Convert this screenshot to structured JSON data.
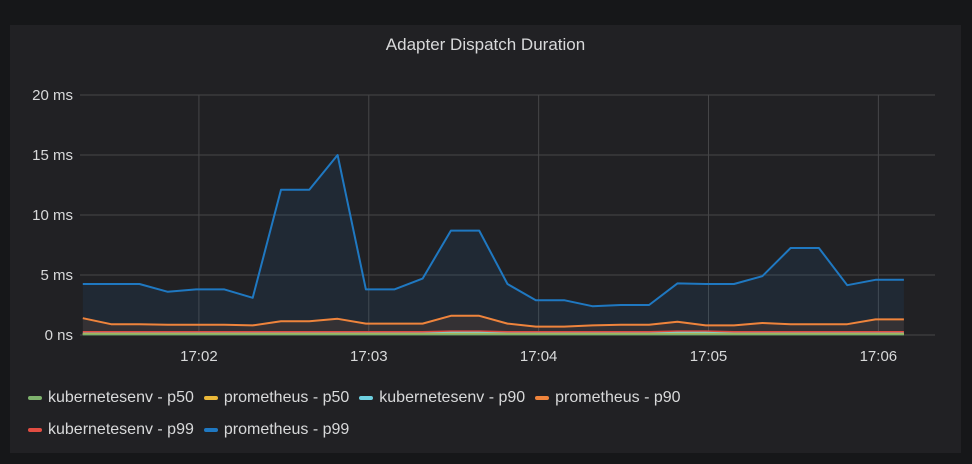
{
  "chart_data": {
    "type": "line",
    "title": "Adapter Dispatch Duration",
    "xlabel": "",
    "ylabel": "",
    "ylim": [
      0,
      20
    ],
    "y_ticks": [
      "0 ns",
      "5 ms",
      "10 ms",
      "15 ms",
      "20 ms"
    ],
    "y_tick_values": [
      0,
      5,
      10,
      15,
      20
    ],
    "xlim": [
      "17:01:18",
      "17:06:20"
    ],
    "x_ticks": [
      "17:02",
      "17:03",
      "17:04",
      "17:05",
      "17:06"
    ],
    "grid": true,
    "legend_position": "bottom",
    "x": [
      "17:01:19",
      "17:01:29",
      "17:01:39",
      "17:01:49",
      "17:01:59",
      "17:02:09",
      "17:02:19",
      "17:02:29",
      "17:02:39",
      "17:02:49",
      "17:02:59",
      "17:03:09",
      "17:03:19",
      "17:03:29",
      "17:03:39",
      "17:03:49",
      "17:03:59",
      "17:04:09",
      "17:04:19",
      "17:04:29",
      "17:04:39",
      "17:04:49",
      "17:04:59",
      "17:05:09",
      "17:05:19",
      "17:05:29",
      "17:05:39",
      "17:05:49",
      "17:05:59",
      "17:06:09"
    ],
    "series": [
      {
        "name": "kubernetesenv - p50",
        "color": "#7EB26D",
        "values": [
          0.05,
          0.05,
          0.05,
          0.05,
          0.05,
          0.05,
          0.05,
          0.05,
          0.05,
          0.05,
          0.05,
          0.05,
          0.05,
          0.05,
          0.05,
          0.05,
          0.05,
          0.05,
          0.05,
          0.05,
          0.05,
          0.05,
          0.05,
          0.05,
          0.05,
          0.05,
          0.05,
          0.05,
          0.05,
          0.05
        ]
      },
      {
        "name": "prometheus - p50",
        "color": "#EAB839",
        "values": [
          0.08,
          0.08,
          0.08,
          0.08,
          0.08,
          0.08,
          0.08,
          0.08,
          0.08,
          0.08,
          0.08,
          0.08,
          0.08,
          0.1,
          0.1,
          0.08,
          0.08,
          0.08,
          0.08,
          0.08,
          0.08,
          0.1,
          0.1,
          0.08,
          0.08,
          0.08,
          0.08,
          0.08,
          0.08,
          0.08
        ]
      },
      {
        "name": "kubernetesenv - p90",
        "color": "#6ED0E0",
        "values": [
          0.12,
          0.12,
          0.12,
          0.12,
          0.12,
          0.12,
          0.12,
          0.12,
          0.12,
          0.12,
          0.12,
          0.12,
          0.12,
          0.18,
          0.18,
          0.12,
          0.12,
          0.12,
          0.12,
          0.12,
          0.12,
          0.18,
          0.18,
          0.12,
          0.12,
          0.12,
          0.12,
          0.12,
          0.12,
          0.12
        ]
      },
      {
        "name": "prometheus - p90",
        "color": "#EF843C",
        "values": [
          1.4,
          0.9,
          0.9,
          0.85,
          0.85,
          0.85,
          0.8,
          1.15,
          1.15,
          1.35,
          0.95,
          0.95,
          0.95,
          1.6,
          1.6,
          0.95,
          0.7,
          0.7,
          0.8,
          0.85,
          0.85,
          1.1,
          0.8,
          0.8,
          1.0,
          0.9,
          0.9,
          0.9,
          1.3,
          1.3
        ]
      },
      {
        "name": "kubernetesenv - p99",
        "color": "#E24D42",
        "values": [
          0.25,
          0.25,
          0.25,
          0.25,
          0.25,
          0.25,
          0.25,
          0.25,
          0.25,
          0.25,
          0.25,
          0.25,
          0.25,
          0.3,
          0.3,
          0.25,
          0.25,
          0.25,
          0.25,
          0.25,
          0.25,
          0.3,
          0.3,
          0.25,
          0.25,
          0.25,
          0.25,
          0.25,
          0.25,
          0.25
        ]
      },
      {
        "name": "prometheus - p99",
        "color": "#1F78C1",
        "values": [
          4.25,
          4.25,
          4.25,
          3.6,
          3.8,
          3.8,
          3.1,
          12.1,
          12.1,
          15.0,
          3.8,
          3.8,
          4.7,
          8.7,
          8.7,
          4.25,
          2.9,
          2.9,
          2.4,
          2.5,
          2.5,
          4.3,
          4.25,
          4.25,
          4.9,
          7.25,
          7.25,
          4.15,
          4.6,
          4.6
        ]
      }
    ]
  }
}
